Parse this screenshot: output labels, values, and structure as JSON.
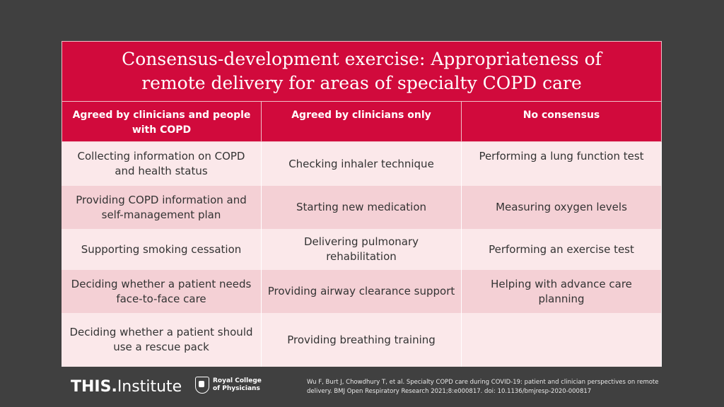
{
  "title": "Consensus-development exercise: Appropriateness of remote delivery for areas of specialty COPD care",
  "headers": [
    "Agreed by clinicians and people with COPD",
    "Agreed by clinicians only",
    "No consensus"
  ],
  "rows": [
    [
      "Collecting information on COPD and health status",
      "Checking inhaler technique",
      "Performing a lung function test"
    ],
    [
      "Providing COPD information and self-management plan",
      "Starting new medication",
      "Measuring oxygen levels"
    ],
    [
      "Supporting smoking cessation",
      "Delivering pulmonary rehabilitation",
      "Performing an exercise test"
    ],
    [
      "Deciding whether a patient needs face-to-face care",
      "Providing airway clearance support",
      "Helping with advance care planning"
    ],
    [
      "Deciding whether a patient should use a rescue pack",
      "Providing breathing training",
      ""
    ]
  ],
  "footer": {
    "logo_bold": "THIS.",
    "logo_rest": "Institute",
    "rcp_name": "Royal College of Physicians",
    "citation": "Wu F, Burt J, Chowdhury T, et al. Specialty COPD care during COVID-19: patient and clinician perspectives on remote delivery. BMJ Open Respiratory Research 2021;8:e000817. doi: 10.1136/bmjresp-2020-000817"
  }
}
